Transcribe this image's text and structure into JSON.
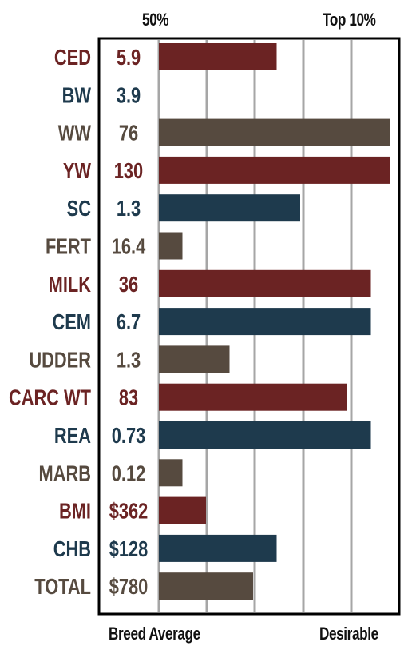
{
  "header": {
    "left": "50%",
    "right": "Top 10%"
  },
  "footer": {
    "left": "Breed Average",
    "right": "Desirable"
  },
  "colors": {
    "red": "#6b2323",
    "blue": "#1e3a4d",
    "brown": "#564a3f",
    "gridline": "#a6a6a6",
    "frame": "#000000"
  },
  "chart_data": {
    "type": "bar",
    "orientation": "horizontal",
    "categories": [
      "CED",
      "BW",
      "WW",
      "YW",
      "SC",
      "FERT",
      "MILK",
      "CEM",
      "UDDER",
      "CARC WT",
      "REA",
      "MARB",
      "BMI",
      "CHB",
      "TOTAL"
    ],
    "value_labels": [
      "5.9",
      "3.9",
      "76",
      "130",
      "1.3",
      "16.4",
      "36",
      "6.7",
      "1.3",
      "83",
      "0.73",
      "0.12",
      "$362",
      "$128",
      "$780"
    ],
    "category_colors": [
      "red",
      "blue",
      "brown",
      "red",
      "blue",
      "brown",
      "red",
      "blue",
      "brown",
      "red",
      "blue",
      "brown",
      "red",
      "blue",
      "brown"
    ],
    "values": [
      50,
      0,
      98,
      98,
      60,
      10,
      90,
      90,
      30,
      80,
      90,
      10,
      20,
      50,
      40
    ],
    "xlim": [
      0,
      100
    ],
    "x_axis_left_label": "Breed Average",
    "x_axis_right_label": "Desirable",
    "top_left_label": "50%",
    "top_right_label": "Top 10%",
    "grid": true
  }
}
